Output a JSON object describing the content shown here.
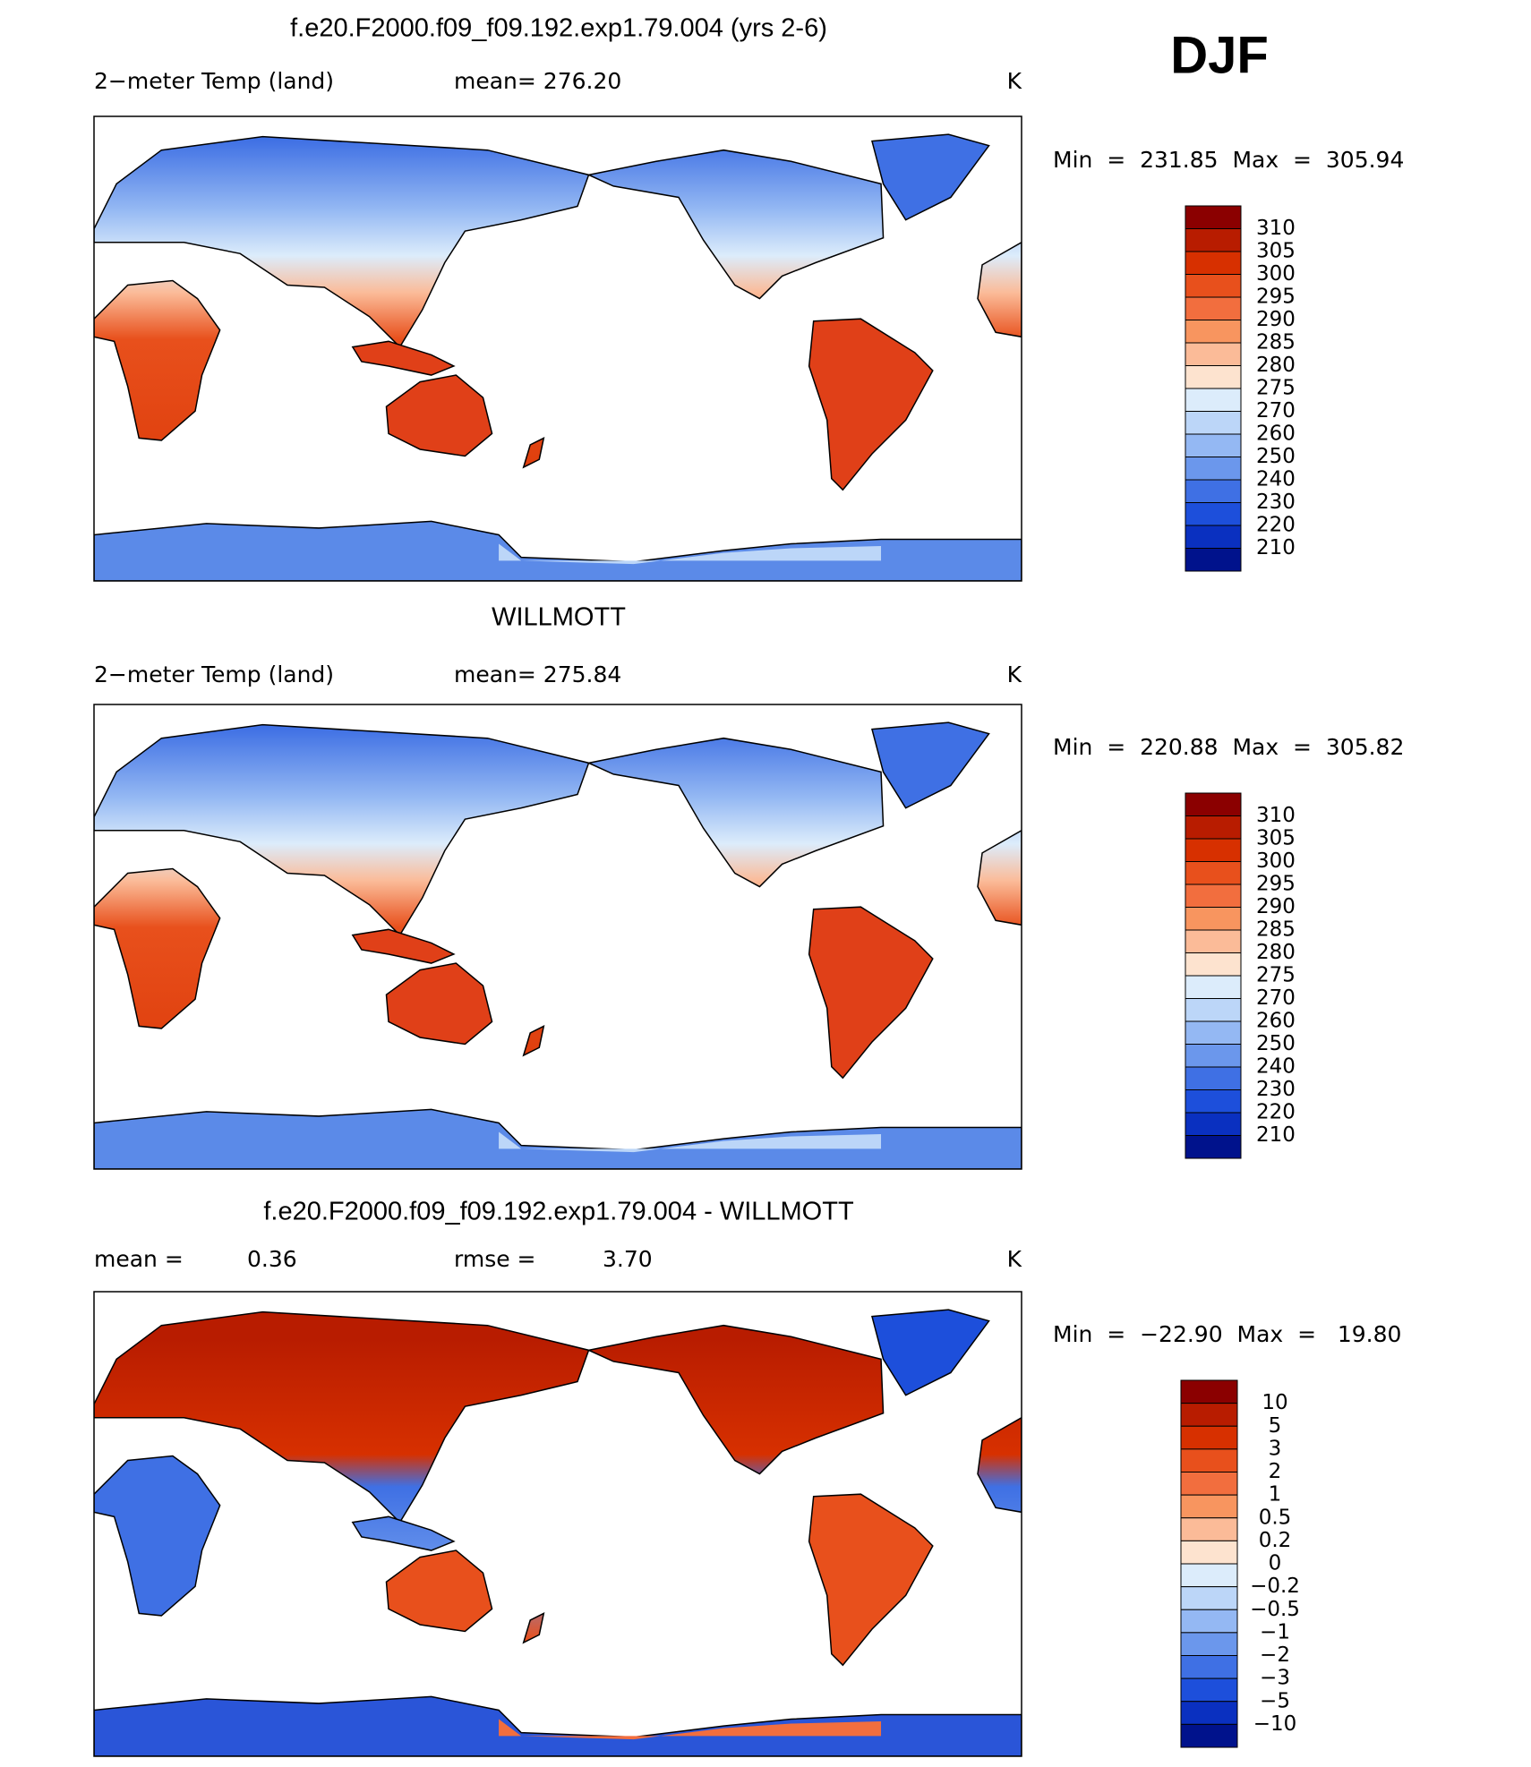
{
  "season": "DJF",
  "panels": [
    {
      "title": "f.e20.F2000.f09_f09.192.exp1.79.004 (yrs 2-6)",
      "left_label": "2−meter Temp (land)",
      "center_label": "mean= 276.20",
      "unit": "K",
      "range_label": "Min  =  231.85  Max  =  305.94",
      "colorbar": {
        "labels": [
          "310",
          "305",
          "300",
          "295",
          "290",
          "285",
          "280",
          "275",
          "270",
          "260",
          "250",
          "240",
          "230",
          "220",
          "210"
        ],
        "colors": [
          "#8b0000",
          "#b81c00",
          "#d73000",
          "#e8501c",
          "#f26e3e",
          "#f8955f",
          "#fbbb98",
          "#fde3cf",
          "#dcecfb",
          "#bcd6f8",
          "#94b8f3",
          "#6b97ec",
          "#3f70e4",
          "#1d4fdb",
          "#0a30c0",
          "#00128c"
        ]
      }
    },
    {
      "title": "WILLMOTT",
      "left_label": "2−meter Temp (land)",
      "center_label": "mean= 275.84",
      "unit": "K",
      "range_label": "Min  =  220.88  Max  =  305.82",
      "colorbar": {
        "labels": [
          "310",
          "305",
          "300",
          "295",
          "290",
          "285",
          "280",
          "275",
          "270",
          "260",
          "250",
          "240",
          "230",
          "220",
          "210"
        ],
        "colors": [
          "#8b0000",
          "#b81c00",
          "#d73000",
          "#e8501c",
          "#f26e3e",
          "#f8955f",
          "#fbbb98",
          "#fde3cf",
          "#dcecfb",
          "#bcd6f8",
          "#94b8f3",
          "#6b97ec",
          "#3f70e4",
          "#1d4fdb",
          "#0a30c0",
          "#00128c"
        ]
      }
    },
    {
      "title": "f.e20.F2000.f09_f09.192.exp1.79.004 - WILLMOTT",
      "mean_label": "mean =",
      "mean_value": "0.36",
      "rmse_label": "rmse =",
      "rmse_value": "3.70",
      "unit": "K",
      "range_label": "Min  =  −22.90  Max  =   19.80",
      "colorbar": {
        "labels": [
          "10",
          "5",
          "3",
          "2",
          "1",
          "0.5",
          "0.2",
          "0",
          "−0.2",
          "−0.5",
          "−1",
          "−2",
          "−3",
          "−5",
          "−10"
        ],
        "colors": [
          "#8b0000",
          "#b81c00",
          "#d73000",
          "#e8501c",
          "#f26e3e",
          "#f8955f",
          "#fbbb98",
          "#fde3cf",
          "#dcecfb",
          "#bcd6f8",
          "#94b8f3",
          "#6b97ec",
          "#3f70e4",
          "#1d4fdb",
          "#0a30c0",
          "#00128c"
        ]
      }
    }
  ]
}
